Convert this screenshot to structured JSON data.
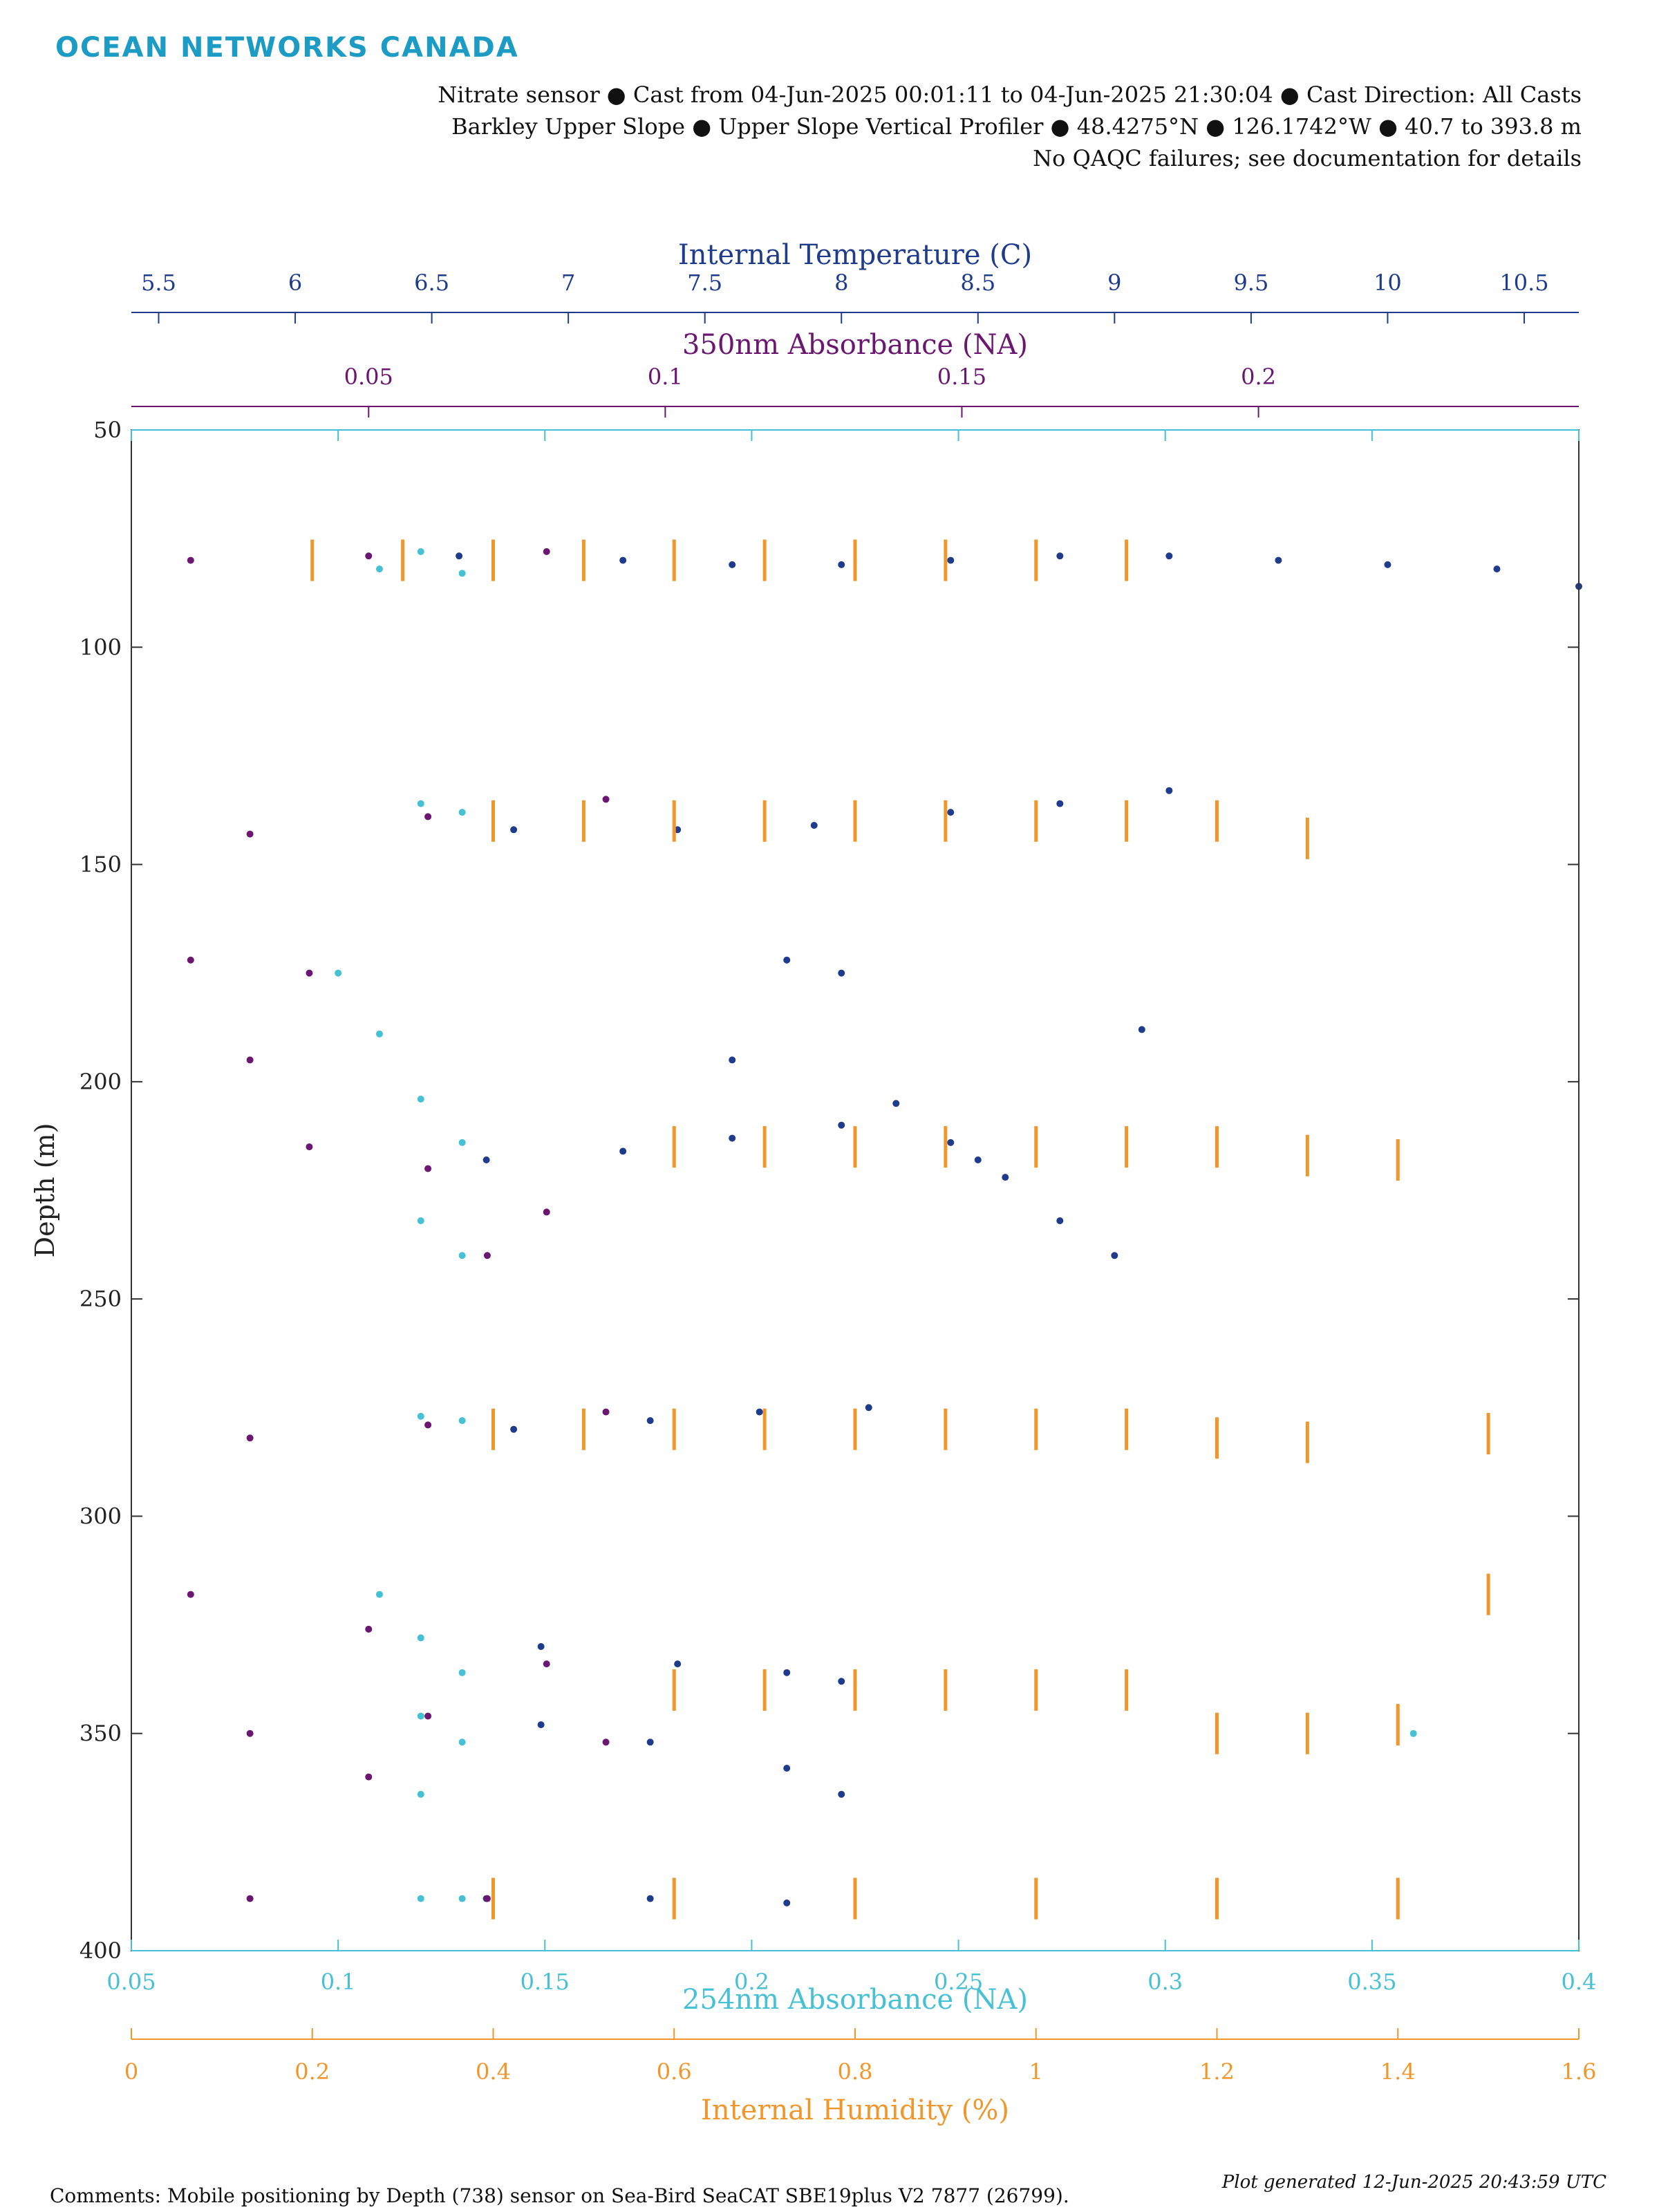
{
  "brand": {
    "name": "OCEAN NETWORKS CANADA",
    "color": "#1c9cc4"
  },
  "header": {
    "line1": "Nitrate sensor ● Cast from 04-Jun-2025 00:01:11 to 04-Jun-2025 21:30:04 ● Cast Direction: All Casts",
    "line2": "Barkley Upper Slope ● Upper Slope Vertical Profiler ● 48.4275°N ● 126.1742°W ● 40.7 to 393.8 m",
    "line3": "No QAQC failures; see documentation for details"
  },
  "footer": {
    "comments": "Comments: Mobile positioning by Depth (738) sensor on Sea-Bird SeaCAT SBE19plus V2 7877 (26799).",
    "generated": "Plot generated 12-Jun-2025 20:43:59 UTC"
  },
  "chart_data": {
    "type": "scatter",
    "grid": false,
    "y_axis": {
      "label": "Depth (m)",
      "range": [
        50,
        400
      ],
      "reversed": true,
      "ticks": [
        "50",
        "100",
        "150",
        "200",
        "250",
        "300",
        "350",
        "400"
      ]
    },
    "x_axes": {
      "temperature": {
        "label": "Internal Temperature (C)",
        "position": "top",
        "color": "#1f3c8c",
        "range": [
          5.4,
          10.7
        ],
        "ticks": [
          "5.5",
          "6",
          "6.5",
          "7",
          "7.5",
          "8",
          "8.5",
          "9",
          "9.5",
          "10",
          "10.5"
        ]
      },
      "abs350": {
        "label": "350nm Absorbance (NA)",
        "position": "top",
        "color": "#6b1670",
        "range": [
          0.01,
          0.254
        ],
        "ticks": [
          "0.05",
          "0.1",
          "0.15",
          "0.2"
        ]
      },
      "abs254": {
        "label": "254nm Absorbance (NA)",
        "position": "bottom",
        "color": "#45c0d4",
        "range": [
          0.05,
          0.4
        ],
        "ticks": [
          "0.05",
          "0.1",
          "0.15",
          "0.2",
          "0.25",
          "0.3",
          "0.35",
          "0.4"
        ]
      },
      "humidity": {
        "label": "Internal Humidity (%)",
        "position": "bottom",
        "color": "#f0962a",
        "range": [
          0,
          1.6
        ],
        "ticks": [
          "0",
          "0.2",
          "0.4",
          "0.6",
          "0.8",
          "1",
          "1.2",
          "1.4",
          "1.6"
        ]
      }
    },
    "series": [
      {
        "axis": "temperature",
        "color": "#1f3c8c",
        "points": [
          [
            6.6,
            79
          ],
          [
            7.2,
            80
          ],
          [
            7.6,
            81
          ],
          [
            8.0,
            81
          ],
          [
            8.4,
            80
          ],
          [
            8.8,
            79
          ],
          [
            9.2,
            79
          ],
          [
            9.6,
            80
          ],
          [
            10.0,
            81
          ],
          [
            10.4,
            82
          ],
          [
            10.7,
            86
          ],
          [
            6.8,
            142
          ],
          [
            7.4,
            142
          ],
          [
            7.9,
            141
          ],
          [
            8.4,
            138
          ],
          [
            8.8,
            136
          ],
          [
            9.2,
            133
          ],
          [
            7.8,
            172
          ],
          [
            8.0,
            175
          ],
          [
            9.1,
            188
          ],
          [
            6.7,
            218
          ],
          [
            7.2,
            216
          ],
          [
            7.6,
            213
          ],
          [
            8.0,
            210
          ],
          [
            8.4,
            214
          ],
          [
            8.6,
            222
          ],
          [
            8.8,
            232
          ],
          [
            9.0,
            240
          ],
          [
            7.6,
            195
          ],
          [
            8.2,
            205
          ],
          [
            8.5,
            218
          ],
          [
            6.8,
            280
          ],
          [
            7.3,
            278
          ],
          [
            7.7,
            276
          ],
          [
            8.1,
            275
          ],
          [
            6.9,
            330
          ],
          [
            7.4,
            334
          ],
          [
            7.8,
            336
          ],
          [
            8.0,
            338
          ],
          [
            6.9,
            348
          ],
          [
            7.3,
            352
          ],
          [
            7.8,
            358
          ],
          [
            8.0,
            364
          ],
          [
            6.7,
            388
          ],
          [
            7.3,
            388
          ],
          [
            7.8,
            389
          ]
        ]
      },
      {
        "axis": "abs350",
        "color": "#6b1670",
        "points": [
          [
            0.02,
            80
          ],
          [
            0.05,
            79
          ],
          [
            0.08,
            78
          ],
          [
            0.03,
            143
          ],
          [
            0.06,
            139
          ],
          [
            0.09,
            135
          ],
          [
            0.02,
            172
          ],
          [
            0.04,
            175
          ],
          [
            0.03,
            195
          ],
          [
            0.04,
            215
          ],
          [
            0.06,
            220
          ],
          [
            0.08,
            230
          ],
          [
            0.07,
            240
          ],
          [
            0.03,
            282
          ],
          [
            0.06,
            279
          ],
          [
            0.09,
            276
          ],
          [
            0.02,
            318
          ],
          [
            0.05,
            326
          ],
          [
            0.08,
            334
          ],
          [
            0.03,
            350
          ],
          [
            0.06,
            346
          ],
          [
            0.09,
            352
          ],
          [
            0.05,
            360
          ],
          [
            0.03,
            388
          ],
          [
            0.07,
            388
          ]
        ]
      },
      {
        "axis": "abs254",
        "color": "#45c0d4",
        "points": [
          [
            0.12,
            78
          ],
          [
            0.13,
            83
          ],
          [
            0.11,
            82
          ],
          [
            0.12,
            136
          ],
          [
            0.13,
            138
          ],
          [
            0.1,
            175
          ],
          [
            0.11,
            189
          ],
          [
            0.12,
            204
          ],
          [
            0.13,
            214
          ],
          [
            0.12,
            232
          ],
          [
            0.13,
            240
          ],
          [
            0.12,
            277
          ],
          [
            0.13,
            278
          ],
          [
            0.11,
            318
          ],
          [
            0.12,
            328
          ],
          [
            0.13,
            336
          ],
          [
            0.12,
            346
          ],
          [
            0.13,
            352
          ],
          [
            0.12,
            364
          ],
          [
            0.12,
            388
          ],
          [
            0.13,
            388
          ],
          [
            0.36,
            350
          ]
        ]
      },
      {
        "axis": "humidity",
        "color": "#f0962a",
        "points": [
          [
            0.2,
            80
          ],
          [
            0.3,
            80
          ],
          [
            0.4,
            80
          ],
          [
            0.5,
            80
          ],
          [
            0.6,
            80
          ],
          [
            0.7,
            80
          ],
          [
            0.8,
            80
          ],
          [
            0.9,
            80
          ],
          [
            1.0,
            80
          ],
          [
            1.1,
            80
          ],
          [
            0.4,
            140
          ],
          [
            0.5,
            140
          ],
          [
            0.6,
            140
          ],
          [
            0.7,
            140
          ],
          [
            0.8,
            140
          ],
          [
            0.9,
            140
          ],
          [
            1.0,
            140
          ],
          [
            1.1,
            140
          ],
          [
            1.2,
            140
          ],
          [
            1.3,
            144
          ],
          [
            0.6,
            215
          ],
          [
            0.7,
            215
          ],
          [
            0.8,
            215
          ],
          [
            0.9,
            215
          ],
          [
            1.0,
            215
          ],
          [
            1.1,
            215
          ],
          [
            1.2,
            215
          ],
          [
            1.3,
            217
          ],
          [
            1.4,
            218
          ],
          [
            0.4,
            280
          ],
          [
            0.5,
            280
          ],
          [
            0.6,
            280
          ],
          [
            0.7,
            280
          ],
          [
            0.8,
            280
          ],
          [
            0.9,
            280
          ],
          [
            1.0,
            280
          ],
          [
            1.1,
            280
          ],
          [
            1.2,
            282
          ],
          [
            1.3,
            283
          ],
          [
            1.5,
            281
          ],
          [
            0.6,
            340
          ],
          [
            0.7,
            340
          ],
          [
            0.8,
            340
          ],
          [
            0.9,
            340
          ],
          [
            1.0,
            340
          ],
          [
            1.1,
            340
          ],
          [
            1.2,
            350
          ],
          [
            1.3,
            350
          ],
          [
            1.4,
            348
          ],
          [
            1.5,
            318
          ],
          [
            0.4,
            388
          ],
          [
            0.6,
            388
          ],
          [
            0.8,
            388
          ],
          [
            1.0,
            388
          ],
          [
            1.2,
            388
          ],
          [
            1.4,
            388
          ]
        ]
      }
    ]
  }
}
